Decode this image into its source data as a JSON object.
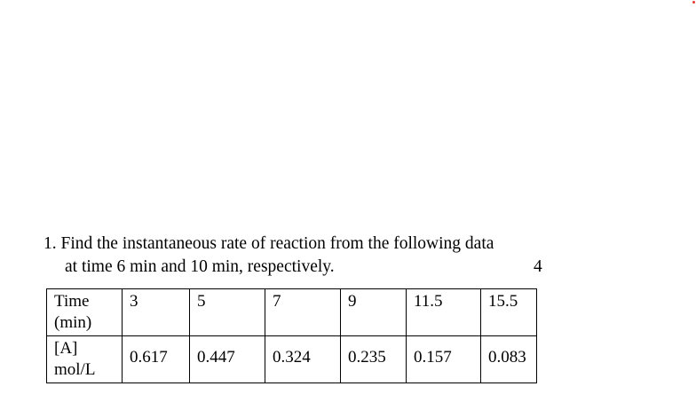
{
  "question": {
    "number": "1.",
    "line1": "Find the instantaneous rate of reaction from the following data",
    "line2": "at time 6 min and 10 min, respectively.",
    "marks": "4"
  },
  "table": {
    "rows": [
      {
        "label": "Time (min)",
        "values": [
          "3",
          "5",
          "7",
          "9",
          "11.5",
          "15.5"
        ]
      },
      {
        "label": "[A] mol/L",
        "values": [
          "0.617",
          "0.447",
          "0.324",
          "0.235",
          "0.157",
          "0.083"
        ]
      }
    ]
  },
  "colors": {
    "text": "#000000",
    "border": "#000000",
    "marker": "#e53935"
  }
}
